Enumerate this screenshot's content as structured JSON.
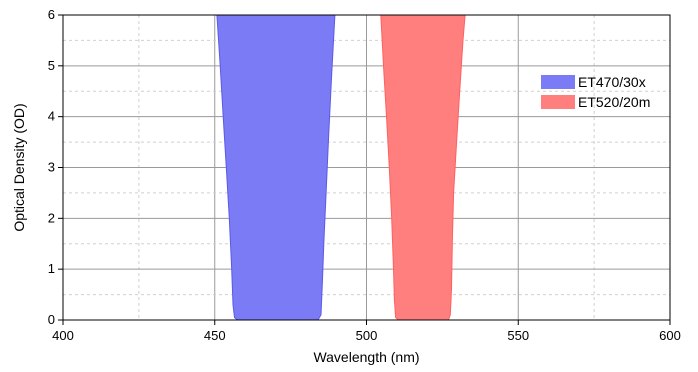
{
  "chart_data": {
    "type": "area",
    "title": "",
    "xlabel": "Wavelength (nm)",
    "ylabel": "Optical Density (OD)",
    "xlim": [
      400,
      600
    ],
    "ylim": [
      0,
      6
    ],
    "x_ticks": [
      400,
      450,
      500,
      550,
      600
    ],
    "y_ticks": [
      0,
      1,
      2,
      3,
      4,
      5,
      6
    ],
    "grid": "major solid, minor dashed",
    "legend_position": "right",
    "series": [
      {
        "name": "ET470/30x",
        "color": "#7b7bf5",
        "edge_color": "#5a5ae6",
        "points": [
          [
            450.7,
            6.0
          ],
          [
            451.8,
            5.0
          ],
          [
            452.8,
            4.0
          ],
          [
            453.8,
            3.0
          ],
          [
            454.8,
            2.0
          ],
          [
            455.6,
            1.0
          ],
          [
            456.0,
            0.3
          ],
          [
            456.5,
            0.05
          ],
          [
            457.5,
            0.0
          ],
          [
            484.0,
            0.0
          ],
          [
            485.0,
            0.1
          ],
          [
            485.5,
            0.8
          ],
          [
            486.0,
            1.6
          ],
          [
            486.7,
            2.5
          ],
          [
            487.5,
            3.6
          ],
          [
            488.5,
            4.8
          ],
          [
            489.6,
            6.0
          ]
        ]
      },
      {
        "name": "ET520/20m",
        "color": "#ff7f7f",
        "edge_color": "#ff6060",
        "points": [
          [
            504.7,
            6.0
          ],
          [
            505.6,
            5.0
          ],
          [
            506.6,
            4.0
          ],
          [
            507.5,
            3.0
          ],
          [
            508.3,
            2.0
          ],
          [
            508.9,
            1.0
          ],
          [
            509.2,
            0.4
          ],
          [
            509.6,
            0.05
          ],
          [
            510.5,
            0.0
          ],
          [
            527.0,
            0.0
          ],
          [
            527.6,
            0.1
          ],
          [
            528.0,
            0.6
          ],
          [
            528.3,
            1.6
          ],
          [
            528.7,
            2.5
          ],
          [
            529.7,
            3.5
          ],
          [
            530.7,
            4.5
          ],
          [
            531.8,
            5.5
          ],
          [
            532.5,
            6.0
          ]
        ]
      }
    ]
  }
}
